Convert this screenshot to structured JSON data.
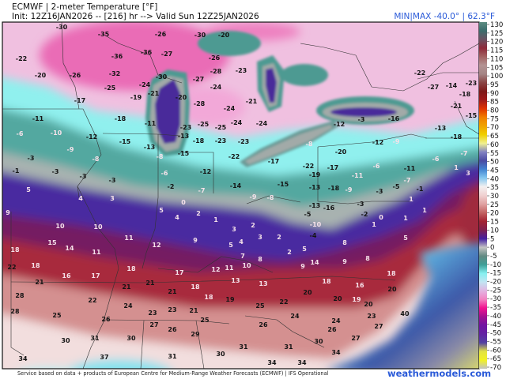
{
  "header": {
    "title": "ECMWF | 2-meter Temperature [°F]",
    "init_line": "Init: 12Z16JAN2026 -- [216] hr --> Valid Sun 12Z25JAN2026",
    "minmax": "MIN|MAX -40.0° | 62.3°F"
  },
  "colorbar": {
    "unit": "°F",
    "labels": [
      "130",
      "125",
      "120",
      "115",
      "110",
      "105",
      "100",
      "95",
      "90",
      "85",
      "80",
      "75",
      "70",
      "65",
      "60",
      "55",
      "50",
      "45",
      "40",
      "35",
      "30",
      "25",
      "20",
      "15",
      "10",
      "5",
      "0",
      "-5",
      "-10",
      "-15",
      "-20",
      "-25",
      "-30",
      "-35",
      "-40",
      "-45",
      "-50",
      "-55",
      "-60",
      "-65",
      "-70"
    ],
    "colors": [
      "#5c8c82",
      "#3c6c6c",
      "#6a5262",
      "#8e2a3a",
      "#a26262",
      "#b49494",
      "#a48484",
      "#8a4444",
      "#7e1a1a",
      "#a01a1a",
      "#e03400",
      "#f08000",
      "#f0a400",
      "#f0d000",
      "#f0f090",
      "#8282c2",
      "#4a4aa2",
      "#4284d2",
      "#86c8f0",
      "#f4f0f0",
      "#f0d0d0",
      "#e0a2a2",
      "#c26262",
      "#a22232",
      "#7e2050",
      "#4420a2",
      "#c4c4c4",
      "#628a82",
      "#3ea098",
      "#86f0f0",
      "#c2e4f2",
      "#e2b4e2",
      "#f282c2",
      "#f01290",
      "#a21090",
      "#7012a2",
      "#6222a2",
      "#5242a2",
      "#e2e244",
      "#f2f222",
      "#c4c4c4"
    ]
  },
  "map": {
    "temperature_labels": [
      "-30",
      "-35",
      "-26",
      "-30",
      "-20",
      "-22",
      "-36",
      "-36",
      "-27",
      "-26",
      "-20",
      "-26",
      "-32",
      "-30",
      "-28",
      "-23",
      "-27",
      "-24",
      "-25",
      "-24",
      "-21",
      "-19",
      "-20",
      "-28",
      "-17",
      "-24",
      "-21",
      "-11",
      "-18",
      "-11",
      "-23",
      "-25",
      "-25",
      "-24",
      "-24",
      "-6",
      "-10",
      "-12",
      "-15",
      "-13",
      "-13",
      "-18",
      "-23",
      "-23",
      "-9",
      "-15",
      "-3",
      "-8",
      "-8",
      "-22",
      "-1",
      "-3",
      "-3",
      "-3",
      "-6",
      "-12",
      "-2",
      "-7",
      "-14",
      "-22",
      "-14",
      "-27",
      "-18",
      "-23",
      "-21",
      "-15",
      "-12",
      "-3",
      "-16",
      "-13",
      "-18",
      "-8",
      "-20",
      "-9",
      "-12",
      "-7",
      "-6",
      "-17",
      "-22",
      "-17",
      "-19",
      "-11",
      "-6",
      "-11",
      "-7",
      "-15",
      "-13",
      "-18",
      "-9",
      "-3",
      "-5",
      "-1",
      "1",
      "3",
      "5",
      "4",
      "3",
      "9",
      "0",
      "5",
      "4",
      "2",
      "1",
      "10",
      "10",
      "3",
      "11",
      "9",
      "12",
      "5",
      "4",
      "15",
      "14",
      "11",
      "18",
      "18",
      "22",
      "16",
      "17",
      "18",
      "17",
      "12",
      "11",
      "10",
      "21",
      "21",
      "21",
      "21",
      "18",
      "13",
      "28",
      "22",
      "24",
      "18",
      "19",
      "28",
      "25",
      "23",
      "23",
      "21",
      "26",
      "25",
      "27",
      "26",
      "29",
      "30",
      "31",
      "30",
      "31",
      "30",
      "37",
      "34",
      "31",
      "-9",
      "-8",
      "-13",
      "-16",
      "-3",
      "-5",
      "-2",
      "-10",
      "0",
      "1",
      "1",
      "1",
      "1",
      "2",
      "3",
      "2",
      "5",
      "5",
      "-4",
      "8",
      "2",
      "8",
      "7",
      "9",
      "14",
      "9",
      "8",
      "18",
      "18",
      "13",
      "16",
      "20",
      "20",
      "20",
      "19",
      "22",
      "20",
      "40",
      "25",
      "24",
      "24",
      "23",
      "27",
      "26",
      "26",
      "27",
      "30",
      "31",
      "34",
      "34",
      "34"
    ]
  },
  "footer": {
    "credit": "Service based on data + products of European Centre for Medium-Range Weather Forecasts (ECMWF) | IFS Operational",
    "brand": "weathermodels.com"
  }
}
